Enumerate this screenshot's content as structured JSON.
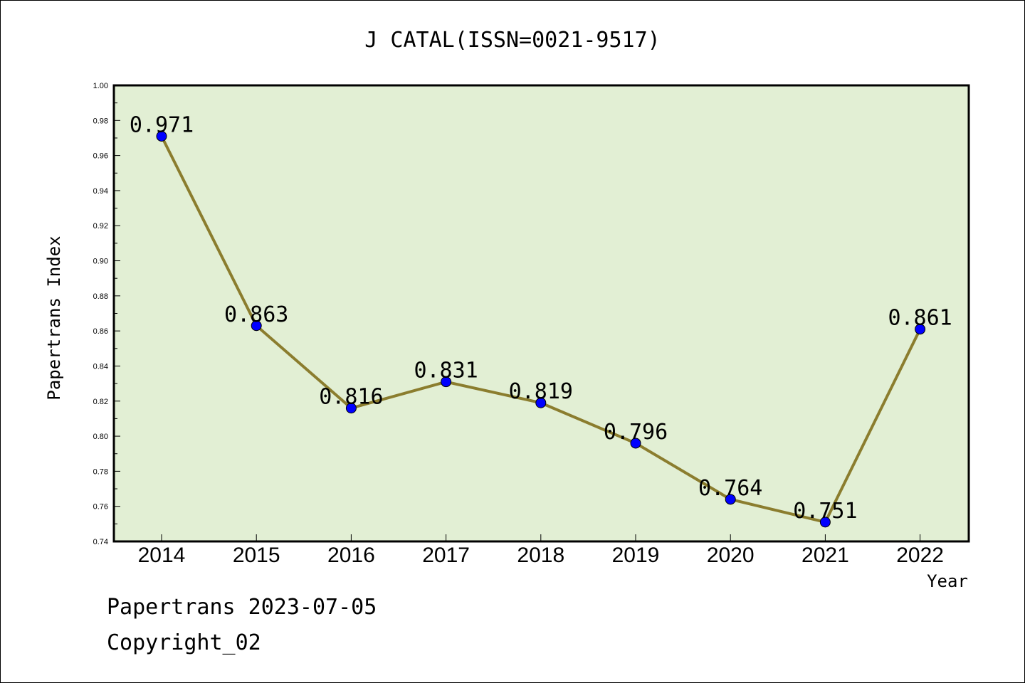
{
  "chart_data": {
    "type": "line",
    "title": "J CATAL(ISSN=0021-9517)",
    "xlabel": "Year",
    "ylabel": "Papertrans Index",
    "categories": [
      "2014",
      "2015",
      "2016",
      "2017",
      "2018",
      "2019",
      "2020",
      "2021",
      "2022"
    ],
    "values": [
      0.971,
      0.863,
      0.816,
      0.831,
      0.819,
      0.796,
      0.764,
      0.751,
      0.861
    ],
    "data_labels": [
      "0.971",
      "0.863",
      "0.816",
      "0.831",
      "0.819",
      "0.796",
      "0.764",
      "0.751",
      "0.861"
    ],
    "ylim": [
      0.74,
      1.0
    ],
    "yticks": [
      "0.74",
      "0.76",
      "0.78",
      "0.80",
      "0.82",
      "0.84",
      "0.86",
      "0.88",
      "0.90",
      "0.92",
      "0.94",
      "0.96",
      "0.98",
      "1.00"
    ],
    "grid": false,
    "colors": {
      "plot_background": "#e2efd4",
      "line": "#8b7d2e",
      "marker": "#0000ff"
    }
  },
  "footer": {
    "line1": "Papertrans 2023-07-05",
    "line2": "Copyright_02"
  }
}
